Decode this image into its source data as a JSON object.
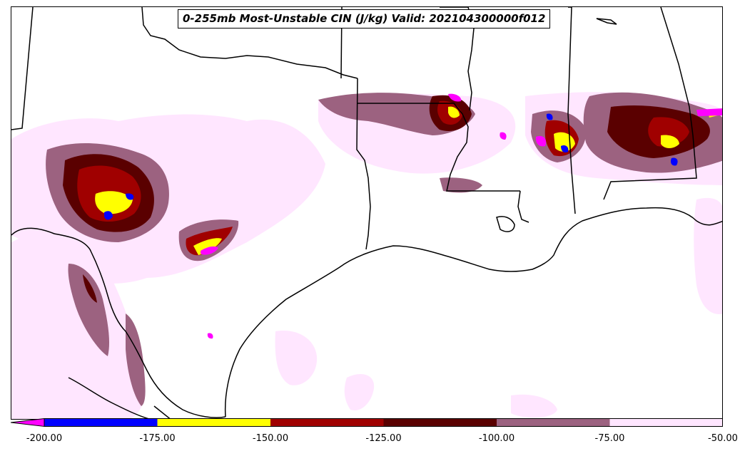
{
  "title": "0-255mb Most-Unstable CIN (J/kg) Valid: 202104300000f012",
  "colorbar": {
    "levels": [
      -200,
      -175,
      -150,
      -125,
      -100,
      -75,
      -50
    ],
    "tick_labels": [
      "-200.00",
      "-175.00",
      "-150.00",
      "-125.00",
      "-100.00",
      "-75.00",
      "-50.00"
    ],
    "colors": [
      "#0000ff",
      "#ffff00",
      "#a00000",
      "#5a0000",
      "#9c6280",
      "#ffe6ff"
    ],
    "under_color": "#ff00ff",
    "extend": "min"
  },
  "map": {
    "region": "Texas, Louisiana, Mississippi, Alabama and northern Mexico",
    "coastline_color": "#000000",
    "background": "#ffffff"
  }
}
